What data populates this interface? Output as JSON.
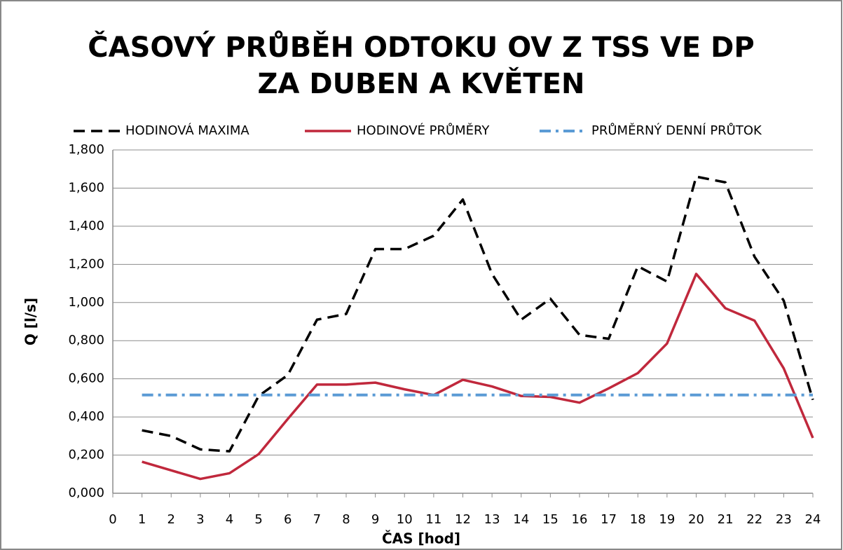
{
  "chart_data": {
    "type": "line",
    "title": [
      "ČASOVÝ PRŮBĚH ODTOKU OV Z TSS VE DP",
      "ZA DUBEN A KVĚTEN"
    ],
    "x_label": "ČAS [hod]",
    "y_label": "Q [l/s]",
    "x": [
      1,
      2,
      3,
      4,
      5,
      6,
      7,
      8,
      9,
      10,
      11,
      12,
      13,
      14,
      15,
      16,
      17,
      18,
      19,
      20,
      21,
      22,
      23,
      24
    ],
    "series": [
      {
        "name": "HODINOVÁ MAXIMA",
        "color": "#000000",
        "dash": "dashed",
        "values": [
          0.33,
          0.3,
          0.23,
          0.22,
          0.51,
          0.62,
          0.91,
          0.94,
          1.28,
          1.28,
          1.35,
          1.54,
          1.15,
          0.91,
          1.02,
          0.83,
          0.81,
          1.19,
          1.11,
          1.66,
          1.63,
          1.24,
          1.01,
          0.49
        ]
      },
      {
        "name": "HODINOVÉ PRŮMĚRY",
        "color": "#c0283c",
        "dash": "solid",
        "values": [
          0.165,
          0.12,
          0.075,
          0.105,
          0.205,
          0.39,
          0.57,
          0.57,
          0.58,
          0.545,
          0.515,
          0.595,
          0.56,
          0.51,
          0.505,
          0.475,
          0.55,
          0.63,
          0.785,
          1.15,
          0.97,
          0.905,
          0.655,
          0.29
        ]
      },
      {
        "name": "PRŮMĚRNÝ DENNÍ PRŮTOK",
        "color": "#5b9bd5",
        "dash": "dashdot",
        "values": [
          0.515,
          0.515,
          0.515,
          0.515,
          0.515,
          0.515,
          0.515,
          0.515,
          0.515,
          0.515,
          0.515,
          0.515,
          0.515,
          0.515,
          0.515,
          0.515,
          0.515,
          0.515,
          0.515,
          0.515,
          0.515,
          0.515,
          0.515,
          0.515
        ]
      }
    ],
    "xlim": [
      0,
      24
    ],
    "xticks": [
      0,
      1,
      2,
      3,
      4,
      5,
      6,
      7,
      8,
      9,
      10,
      11,
      12,
      13,
      14,
      15,
      16,
      17,
      18,
      19,
      20,
      21,
      22,
      23,
      24
    ],
    "ylim": [
      0,
      1.8
    ],
    "yticks": [
      {
        "value": 0,
        "label": "0,000"
      },
      {
        "value": 0.2,
        "label": "0,200"
      },
      {
        "value": 0.4,
        "label": "0,400"
      },
      {
        "value": 0.6,
        "label": "0,600"
      },
      {
        "value": 0.8,
        "label": "0,800"
      },
      {
        "value": 1.0,
        "label": "1,000"
      },
      {
        "value": 1.2,
        "label": "1,200"
      },
      {
        "value": 1.4,
        "label": "1,400"
      },
      {
        "value": 1.6,
        "label": "1,600"
      },
      {
        "value": 1.8,
        "label": "1,800"
      }
    ],
    "grid": true,
    "legend": "top"
  }
}
